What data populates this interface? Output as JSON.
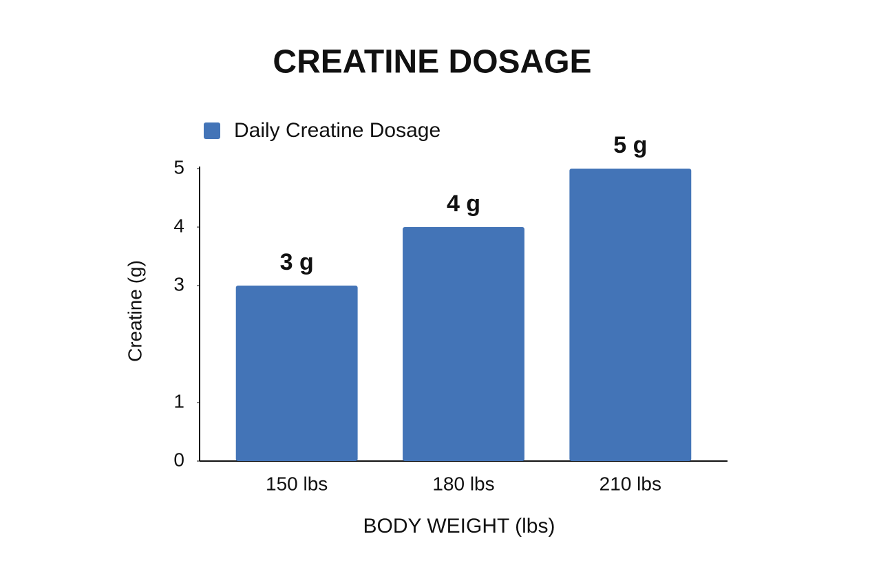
{
  "chart_data": {
    "type": "bar",
    "title": "CREATINE DOSAGE",
    "x_label": "BODY WEIGHT (lbs)",
    "y_label": "Creatine (g)",
    "categories": [
      "150 lbs",
      "180 lbs",
      "210 lbs"
    ],
    "series": [
      {
        "name": "Daily Creatine Dosage",
        "color": "#4374b7",
        "values": [
          3,
          4,
          5
        ],
        "value_labels": [
          "3 g",
          "4 g",
          "5 g"
        ]
      }
    ],
    "ylim": [
      0,
      5
    ],
    "yticks": [
      0,
      1,
      3,
      4,
      5
    ],
    "grid": false,
    "legend": "top-left"
  }
}
